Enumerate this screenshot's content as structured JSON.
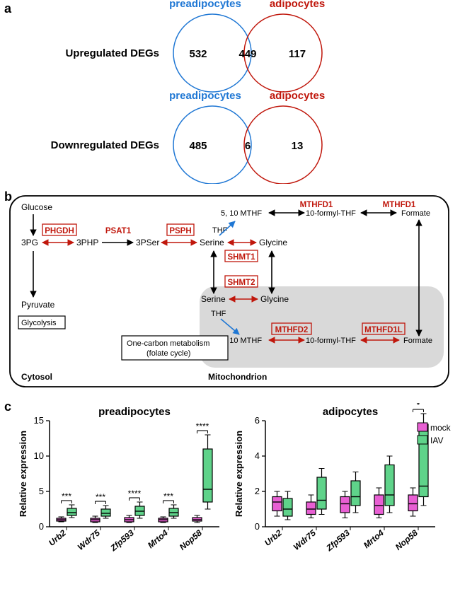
{
  "panel_a": {
    "label": "a",
    "venn_up": {
      "title_left": "preadipocytes",
      "title_right": "adipocytes",
      "row_label": "Upregulated DEGs",
      "left_only": "532",
      "overlap": "449",
      "right_only": "117"
    },
    "venn_down": {
      "title_left": "preadipocytes",
      "title_right": "adipocytes",
      "row_label": "Downregulated DEGs",
      "left_only": "485",
      "overlap": "6",
      "right_only": "13"
    },
    "colors": {
      "preadipocytes": "#1f77d4",
      "adipocytes": "#c0170c",
      "text": "#000000"
    }
  },
  "panel_b": {
    "label": "b",
    "compartments": {
      "cytosol": "Cytosol",
      "mitochondrion": "Mitochondrion"
    },
    "boxes": {
      "glycolysis": "Glycolysis",
      "one_carbon": "One-carbon metabolism\n(folate cycle)"
    },
    "metabolites": {
      "glucose": "Glucose",
      "3pg": "3PG",
      "3php": "3PHP",
      "3pser": "3PSer",
      "serine_c": "Serine",
      "glycine_c": "Glycine",
      "thf_c": "THF",
      "mthf_c": "5, 10 MTHF",
      "formyl_c": "10-formyl-THF",
      "formate_c": "Formate",
      "pyruvate": "Pyruvate",
      "serine_m": "Serine",
      "glycine_m": "Glycine",
      "thf_m": "THF",
      "mthf_m": "5, 10 MTHF",
      "formyl_m": "10-formyl-THF",
      "formate_m": "Formate"
    },
    "enzymes": {
      "phgdh": "PHGDH",
      "psat1": "PSAT1",
      "psph": "PSPH",
      "shmt1": "SHMT1",
      "shmt2": "SHMT2",
      "mthfd1_a": "MTHFD1",
      "mthfd1_b": "MTHFD1",
      "mthfd2": "MTHFD2",
      "mthfd1l": "MTHFD1L"
    },
    "colors": {
      "enzyme_text": "#c0170c",
      "enzyme_box": "#c0170c",
      "red_arrow": "#c0170c",
      "blue_arrow": "#1f77d4",
      "black": "#000000",
      "mito_fill": "#d9d9d9",
      "bg": "#ffffff"
    }
  },
  "panel_c": {
    "label": "c",
    "charts": {
      "preadipocytes": {
        "title": "preadipocytes",
        "y_label": "Relative expression",
        "ylim": [
          0,
          15
        ],
        "yticks": [
          0,
          5,
          10,
          15
        ],
        "genes": [
          "Urb2",
          "Wdr75",
          "Zfp593",
          "Mrto4",
          "Nop58"
        ],
        "mock": {
          "whisker_low": [
            0.7,
            0.6,
            0.6,
            0.6,
            0.6
          ],
          "box_low": [
            0.8,
            0.7,
            0.7,
            0.7,
            0.8
          ],
          "median": [
            1.0,
            1.0,
            1.0,
            1.0,
            1.0
          ],
          "box_high": [
            1.2,
            1.2,
            1.3,
            1.2,
            1.3
          ],
          "whisker_high": [
            1.4,
            1.5,
            1.6,
            1.4,
            1.6
          ]
        },
        "iav": {
          "whisker_low": [
            1.3,
            1.2,
            1.2,
            1.2,
            2.5
          ],
          "box_low": [
            1.6,
            1.5,
            1.6,
            1.5,
            3.5
          ],
          "median": [
            2.0,
            1.9,
            2.2,
            2.0,
            5.3
          ],
          "box_high": [
            2.6,
            2.5,
            2.9,
            2.6,
            11.0
          ],
          "whisker_high": [
            3.1,
            3.0,
            3.5,
            3.1,
            13.0
          ]
        },
        "sig": [
          "***",
          "***",
          "****",
          "***",
          "****"
        ]
      },
      "adipocytes": {
        "title": "adipocytes",
        "y_label": "Relative expression",
        "ylim": [
          0,
          6
        ],
        "yticks": [
          0,
          2,
          4,
          6
        ],
        "genes": [
          "Urb2",
          "Wdr75",
          "Zfp593",
          "Mrto4",
          "Nop58"
        ],
        "mock": {
          "whisker_low": [
            0.6,
            0.5,
            0.5,
            0.5,
            0.6
          ],
          "box_low": [
            0.9,
            0.7,
            0.8,
            0.7,
            0.9
          ],
          "median": [
            1.4,
            1.0,
            1.3,
            1.2,
            1.3
          ],
          "box_high": [
            1.7,
            1.4,
            1.7,
            1.8,
            1.8
          ],
          "whisker_high": [
            2.0,
            1.8,
            2.0,
            2.2,
            2.2
          ]
        },
        "iav": {
          "whisker_low": [
            0.4,
            0.7,
            0.8,
            0.8,
            1.2
          ],
          "box_low": [
            0.6,
            1.0,
            1.2,
            1.2,
            1.7
          ],
          "median": [
            1.0,
            1.5,
            1.7,
            1.8,
            2.3
          ],
          "box_high": [
            1.6,
            2.8,
            2.6,
            3.5,
            5.8
          ],
          "whisker_high": [
            2.0,
            3.3,
            3.1,
            4.0,
            6.4
          ]
        },
        "sig": [
          "",
          "",
          "",
          "",
          "*"
        ]
      }
    },
    "legend": {
      "mock": "mock",
      "iav": "IAV"
    },
    "colors": {
      "mock_fill": "#e85fd3",
      "iav_fill": "#5fd38a",
      "stroke": "#000000",
      "title_font_size": 15,
      "axis_font_size": 13,
      "gene_font_size": 12
    }
  }
}
